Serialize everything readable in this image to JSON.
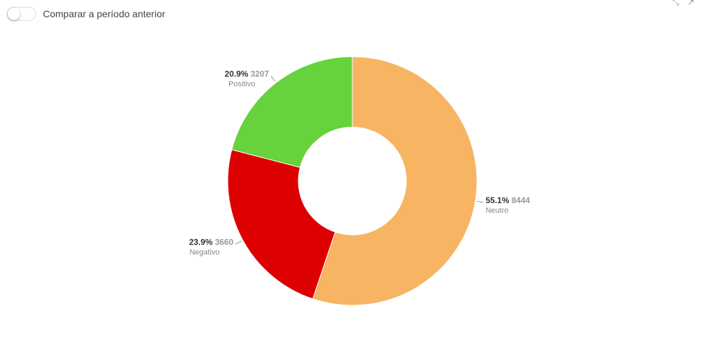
{
  "controls": {
    "compare_label": "Comparar a período anterior",
    "compare_on": false
  },
  "toolbar": {
    "expand_icon": "expand-icon",
    "popout_icon": "popout-icon"
  },
  "chart_data": {
    "type": "pie",
    "donut": true,
    "slices": [
      {
        "name": "Neutro",
        "percent": "55.1%",
        "value": 8444,
        "color": "#F7B462"
      },
      {
        "name": "Negativo",
        "percent": "23.9%",
        "value": 3660,
        "color": "#DD0000"
      },
      {
        "name": "Positivo",
        "percent": "20.9%",
        "value": 3207,
        "color": "#66D23C"
      }
    ]
  }
}
